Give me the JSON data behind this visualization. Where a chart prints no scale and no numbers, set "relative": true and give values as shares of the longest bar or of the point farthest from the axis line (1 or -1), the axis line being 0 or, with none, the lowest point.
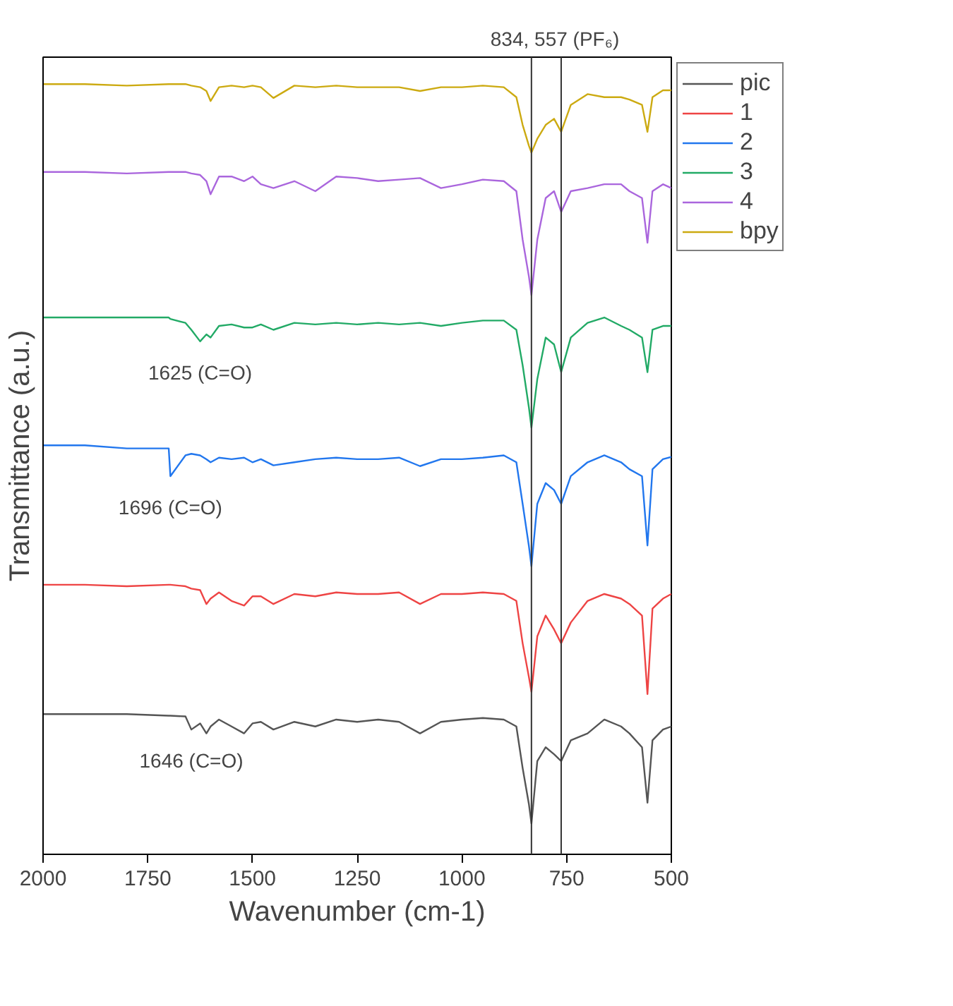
{
  "chart_data": {
    "type": "line",
    "relative": true,
    "xlabel": "Wavenumber (cm-1)",
    "ylabel": "Transmittance (a.u.)",
    "xlim": [
      2000,
      500
    ],
    "xticks": [
      2000,
      1750,
      1500,
      1250,
      1000,
      750,
      500
    ],
    "grid": false,
    "legend": "top right",
    "marker": "none",
    "line_style": "solid",
    "x": [
      2000,
      1900,
      1800,
      1700,
      1696,
      1660,
      1646,
      1625,
      1610,
      1600,
      1580,
      1550,
      1520,
      1500,
      1480,
      1450,
      1400,
      1350,
      1300,
      1250,
      1200,
      1150,
      1100,
      1050,
      1000,
      950,
      900,
      870,
      855,
      840,
      834,
      820,
      800,
      780,
      763,
      740,
      700,
      660,
      620,
      600,
      570,
      557,
      545,
      520,
      500
    ],
    "series": [
      {
        "name": "pic",
        "color": "#555555",
        "values": [
          0.182,
          0.182,
          0.182,
          0.18,
          0.18,
          0.179,
          0.162,
          0.17,
          0.157,
          0.166,
          0.175,
          0.166,
          0.157,
          0.17,
          0.172,
          0.162,
          0.172,
          0.166,
          0.175,
          0.172,
          0.175,
          0.172,
          0.157,
          0.172,
          0.175,
          0.177,
          0.175,
          0.166,
          0.112,
          0.065,
          0.04,
          0.121,
          0.139,
          0.13,
          0.121,
          0.148,
          0.157,
          0.175,
          0.166,
          0.157,
          0.139,
          0.067,
          0.148,
          0.162,
          0.166
        ]
      },
      {
        "name": "1",
        "color": "#ee4444",
        "values": [
          0.35,
          0.35,
          0.348,
          0.35,
          0.35,
          0.348,
          0.345,
          0.343,
          0.325,
          0.332,
          0.34,
          0.329,
          0.323,
          0.335,
          0.335,
          0.325,
          0.338,
          0.335,
          0.34,
          0.338,
          0.338,
          0.34,
          0.325,
          0.338,
          0.338,
          0.34,
          0.338,
          0.329,
          0.274,
          0.23,
          0.211,
          0.283,
          0.31,
          0.292,
          0.274,
          0.301,
          0.329,
          0.338,
          0.332,
          0.325,
          0.31,
          0.208,
          0.319,
          0.332,
          0.338
        ]
      },
      {
        "name": "2",
        "color": "#2277ee",
        "values": [
          0.531,
          0.531,
          0.527,
          0.527,
          0.491,
          0.518,
          0.52,
          0.518,
          0.513,
          0.509,
          0.515,
          0.513,
          0.515,
          0.509,
          0.513,
          0.505,
          0.509,
          0.513,
          0.515,
          0.513,
          0.513,
          0.515,
          0.504,
          0.513,
          0.513,
          0.515,
          0.518,
          0.509,
          0.455,
          0.4,
          0.374,
          0.455,
          0.482,
          0.473,
          0.455,
          0.491,
          0.509,
          0.518,
          0.509,
          0.5,
          0.491,
          0.401,
          0.5,
          0.513,
          0.516
        ]
      },
      {
        "name": "3",
        "color": "#22aa66",
        "values": [
          0.697,
          0.697,
          0.697,
          0.697,
          0.695,
          0.69,
          0.681,
          0.666,
          0.675,
          0.671,
          0.686,
          0.688,
          0.684,
          0.684,
          0.688,
          0.681,
          0.69,
          0.688,
          0.69,
          0.688,
          0.69,
          0.688,
          0.69,
          0.686,
          0.69,
          0.693,
          0.693,
          0.681,
          0.635,
          0.58,
          0.554,
          0.617,
          0.671,
          0.662,
          0.626,
          0.671,
          0.69,
          0.697,
          0.686,
          0.681,
          0.671,
          0.626,
          0.681,
          0.686,
          0.686
        ]
      },
      {
        "name": "4",
        "color": "#aa66dd",
        "values": [
          0.886,
          0.886,
          0.884,
          0.886,
          0.886,
          0.886,
          0.884,
          0.882,
          0.874,
          0.857,
          0.88,
          0.88,
          0.874,
          0.88,
          0.87,
          0.865,
          0.874,
          0.861,
          0.88,
          0.878,
          0.874,
          0.876,
          0.878,
          0.865,
          0.87,
          0.876,
          0.874,
          0.861,
          0.798,
          0.75,
          0.726,
          0.798,
          0.852,
          0.861,
          0.834,
          0.861,
          0.865,
          0.87,
          0.87,
          0.861,
          0.852,
          0.794,
          0.861,
          0.87,
          0.865
        ]
      },
      {
        "name": "bpy",
        "color": "#ccaa11",
        "values": [
          1.0,
          1.0,
          0.998,
          1.0,
          1.0,
          1.0,
          0.998,
          0.996,
          0.991,
          0.978,
          0.996,
          0.998,
          0.996,
          0.998,
          0.996,
          0.982,
          0.998,
          0.996,
          0.998,
          0.996,
          0.996,
          0.996,
          0.991,
          0.996,
          0.996,
          0.998,
          0.996,
          0.983,
          0.947,
          0.92,
          0.911,
          0.929,
          0.947,
          0.955,
          0.938,
          0.973,
          0.987,
          0.983,
          0.983,
          0.98,
          0.973,
          0.938,
          0.983,
          0.992,
          0.992
        ]
      }
    ],
    "ref_lines": [
      {
        "axis": "x",
        "value": 834,
        "color": "#333333"
      },
      {
        "axis": "x",
        "value": 763,
        "color": "#333333"
      }
    ],
    "annotations": [
      "834, 557 (PF₆)",
      {
        "text": "1625 (C=O)",
        "x": 1625,
        "y": 0.666
      },
      {
        "text": "1696 (C=O)",
        "x": 1696,
        "y": 0.491
      },
      {
        "text": "1646 (C=O)",
        "x": 1646,
        "y": 0.162
      }
    ]
  }
}
